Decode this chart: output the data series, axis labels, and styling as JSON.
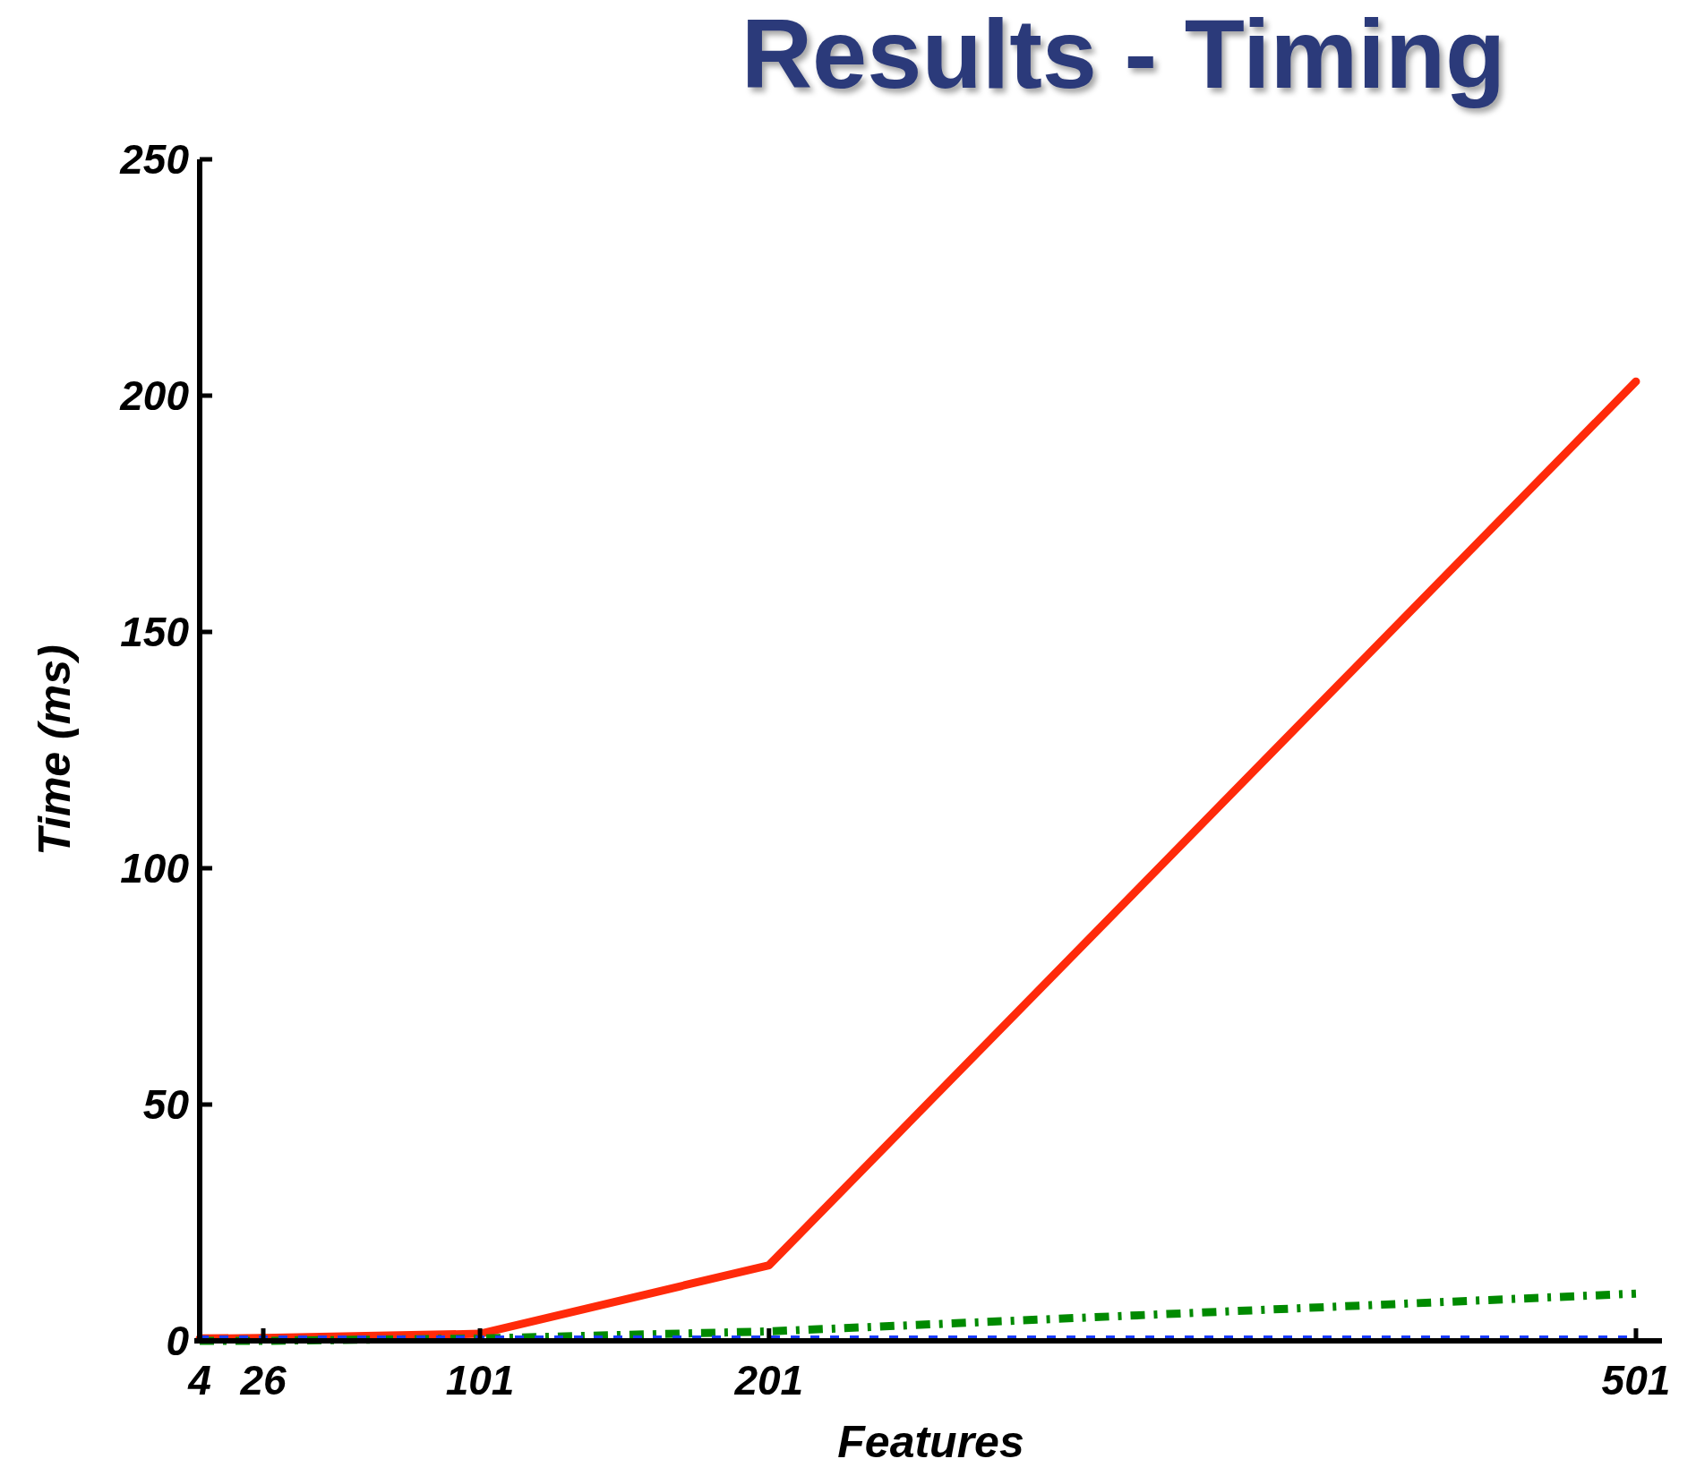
{
  "chart_data": {
    "type": "line",
    "title": "Results - Timing",
    "xlabel": "Features",
    "ylabel": "Time (ms)",
    "x": [
      4,
      26,
      101,
      201,
      501
    ],
    "series": [
      {
        "color": "#ff2a0a",
        "values": [
          0.5,
          0.6,
          1.5,
          16,
          203
        ],
        "line_style": "solid"
      },
      {
        "color": "#008a00",
        "values": [
          0,
          0,
          0.5,
          2,
          10
        ],
        "line_style": "dashed"
      },
      {
        "color": "#1a3cff",
        "values": [
          0.3,
          0.3,
          0.3,
          0.3,
          0.3
        ],
        "line_style": "dotted"
      }
    ],
    "xlim": [
      4,
      510
    ],
    "xticks": [
      4,
      26,
      101,
      201,
      501
    ],
    "ylim": [
      0,
      250
    ],
    "yticks": [
      0,
      50,
      100,
      150,
      200,
      250
    ],
    "grid": false,
    "marker": "none"
  }
}
